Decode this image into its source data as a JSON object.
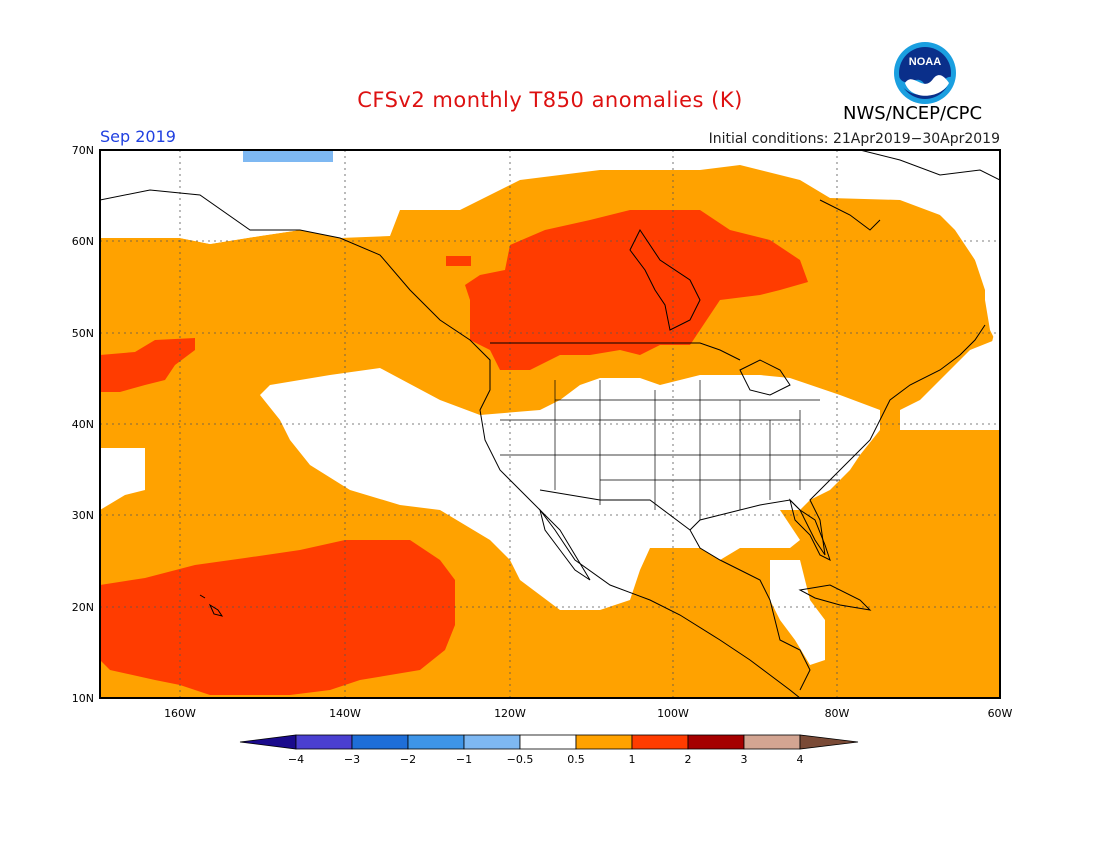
{
  "header": {
    "title": "CFSv2 monthly T850 anomalies (K)",
    "month": "Sep 2019",
    "initial_conditions": "Initial conditions: 21Apr2019−30Apr2019",
    "org": "NWS/NCEP/CPC",
    "logo_text": "NOAA"
  },
  "colors": {
    "title": "#dd1111",
    "month": "#2040e0",
    "frame": "#000000",
    "coast": "#000000"
  },
  "axes": {
    "lat_labels": [
      "70N",
      "60N",
      "50N",
      "40N",
      "30N",
      "20N",
      "10N"
    ],
    "lon_labels": [
      "160W",
      "140W",
      "120W",
      "100W",
      "80W",
      "60W"
    ]
  },
  "colorbar": {
    "bins": [
      {
        "color": "#1a0a8c"
      },
      {
        "color": "#4a3fd0"
      },
      {
        "color": "#1e6ed8"
      },
      {
        "color": "#3e95e8"
      },
      {
        "color": "#7eb8f2"
      },
      {
        "color": "#ffffff"
      },
      {
        "color": "#ffa200"
      },
      {
        "color": "#ff3c00"
      },
      {
        "color": "#a50000"
      },
      {
        "color": "#d3a592"
      },
      {
        "color": "#7a4a36"
      }
    ],
    "labels": [
      "−4",
      "−3",
      "−2",
      "−1",
      "−0.5",
      "0.5",
      "1",
      "2",
      "3",
      "4"
    ]
  }
}
